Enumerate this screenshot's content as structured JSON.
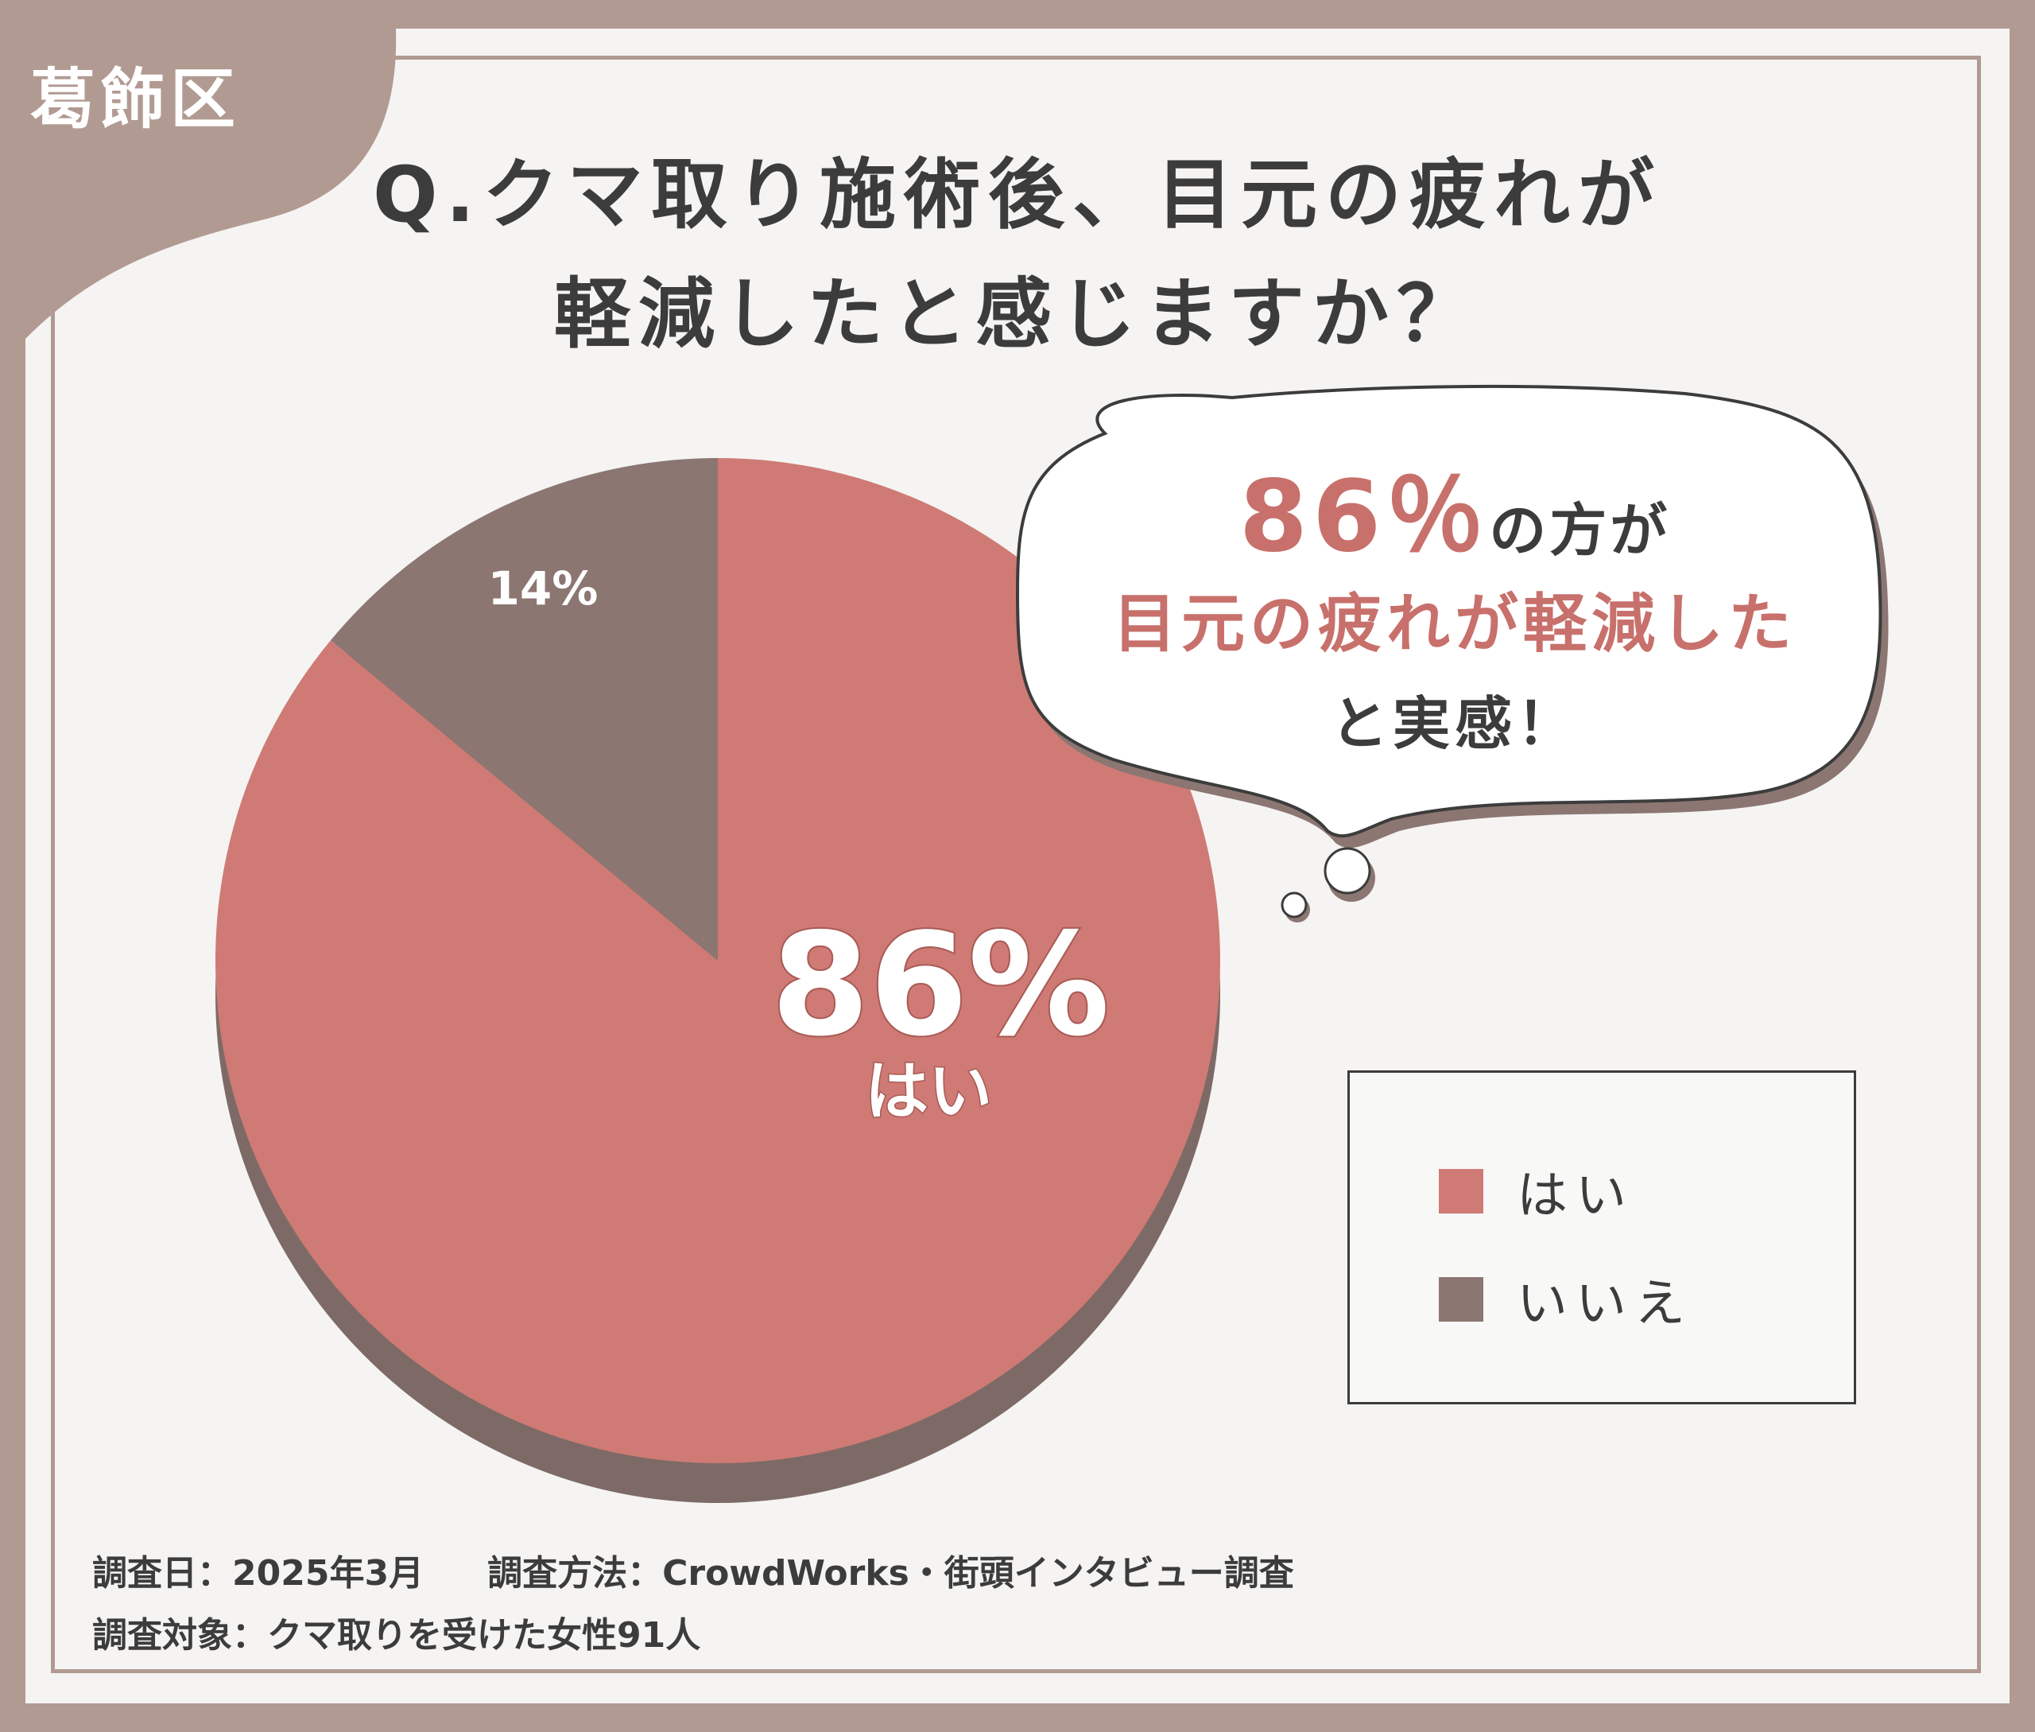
{
  "district": "葛飾区",
  "question": {
    "line1": "Q.クマ取り施術後、目元の疲れが",
    "line2": "軽減したと感じますか？"
  },
  "callout": {
    "percent": "86％",
    "line1_suffix": "の方が",
    "line2": "目元の疲れが軽減した",
    "line3": "と実感！"
  },
  "chart_data": {
    "type": "pie",
    "categories": [
      "はい",
      "いいえ"
    ],
    "values": [
      86,
      14
    ],
    "data_labels": [
      "86%",
      "14%"
    ],
    "slice_caption": "はい",
    "colors": [
      "#cf7a74",
      "#8b7672"
    ],
    "legend_placement": "bottom-right"
  },
  "legend": [
    {
      "label": "はい",
      "color": "#cf7a74"
    },
    {
      "label": "いいえ",
      "color": "#8b7672"
    }
  ],
  "footer": {
    "date": "調査日：2025年3月",
    "method": "調査方法：CrowdWorks・街頭インタビュー調査",
    "target": "調査対象：クマ取りを受けた女性91人"
  }
}
